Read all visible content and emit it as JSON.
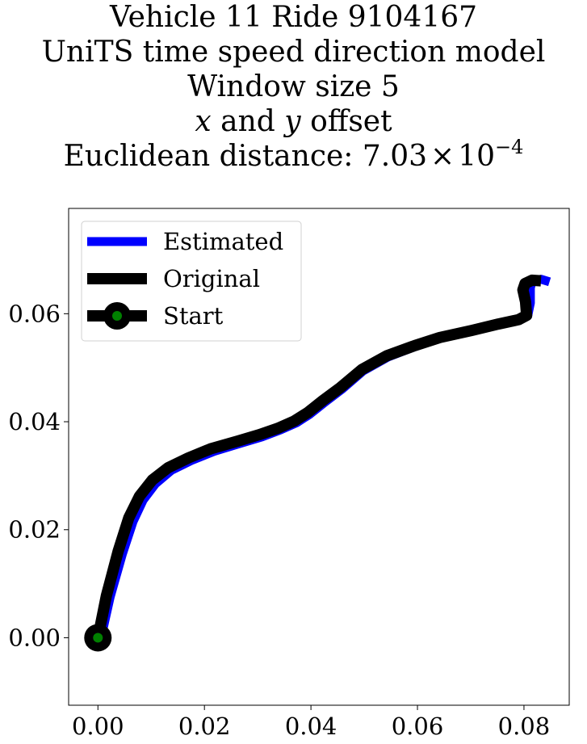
{
  "chart_data": {
    "type": "line",
    "title_lines": [
      "Vehicle 11 Ride 9104167",
      "UniTS time speed direction model",
      "Window size 5"
    ],
    "title_offset_line": {
      "var_x": "x",
      "and_text": " and ",
      "var_y": "y",
      "suffix": " offset"
    },
    "title_distance_line": {
      "prefix": "Euclidean distance: ",
      "mantissa": "7.03",
      "times": "×",
      "base": "10",
      "exponent": "−4"
    },
    "xlim": [
      -0.0055,
      0.0885
    ],
    "ylim": [
      -0.0125,
      0.0795
    ],
    "x_ticks": [
      0.0,
      0.02,
      0.04,
      0.06,
      0.08
    ],
    "x_tick_labels": [
      "0.00",
      "0.02",
      "0.04",
      "0.06",
      "0.08"
    ],
    "y_ticks": [
      0.0,
      0.02,
      0.04,
      0.06
    ],
    "y_tick_labels": [
      "0.00",
      "0.02",
      "0.04",
      "0.06"
    ],
    "legend_position": "upper-left",
    "series": [
      {
        "name": "Estimated",
        "color": "#0000ff",
        "x": [
          0.0006,
          0.0023,
          0.0046,
          0.0066,
          0.0085,
          0.0108,
          0.0138,
          0.0175,
          0.0218,
          0.0268,
          0.0308,
          0.0343,
          0.0373,
          0.0398,
          0.0426,
          0.0458,
          0.0498,
          0.0545,
          0.0598,
          0.0645,
          0.0705,
          0.0755,
          0.0792,
          0.0807,
          0.0812,
          0.0812,
          0.0815,
          0.0832,
          0.0848
        ],
        "y": [
          0.0,
          0.0075,
          0.0155,
          0.0215,
          0.0255,
          0.0285,
          0.031,
          0.0328,
          0.0345,
          0.036,
          0.0372,
          0.0385,
          0.0398,
          0.0414,
          0.0436,
          0.046,
          0.0494,
          0.052,
          0.054,
          0.0555,
          0.0568,
          0.058,
          0.0588,
          0.0596,
          0.062,
          0.0648,
          0.0659,
          0.0664,
          0.0659
        ]
      },
      {
        "name": "Original",
        "color": "#000000",
        "x": [
          0.0,
          0.0016,
          0.0038,
          0.0058,
          0.0078,
          0.0102,
          0.0132,
          0.017,
          0.0212,
          0.0262,
          0.0303,
          0.0338,
          0.0368,
          0.0394,
          0.0422,
          0.0455,
          0.0496,
          0.0542,
          0.0595,
          0.0642,
          0.0702,
          0.0752,
          0.079,
          0.0805,
          0.0803,
          0.0798,
          0.0802,
          0.0815,
          0.0832
        ],
        "y": [
          0.0,
          0.0078,
          0.016,
          0.0222,
          0.0262,
          0.0292,
          0.0315,
          0.0333,
          0.035,
          0.0364,
          0.0376,
          0.0388,
          0.0401,
          0.0417,
          0.0439,
          0.0463,
          0.0497,
          0.0522,
          0.0541,
          0.0556,
          0.0569,
          0.0581,
          0.0589,
          0.0597,
          0.0622,
          0.0644,
          0.0656,
          0.0662,
          0.0661
        ]
      }
    ],
    "start_marker": {
      "name": "Start",
      "x": 0.0,
      "y": 0.0,
      "outer_color": "#000000",
      "inner_color": "#008000"
    }
  }
}
